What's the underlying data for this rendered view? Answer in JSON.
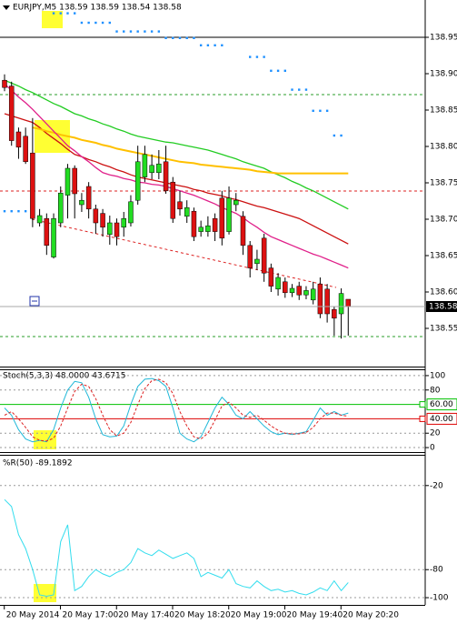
{
  "chart_data": [
    {
      "type": "candlestick",
      "title": "EURJPY,M5  138.59 138.59 138.54 138.58",
      "categories": [
        null,
        "20 May 2014",
        null,
        null,
        null,
        null,
        null,
        null,
        null,
        "20 May 17:00",
        null,
        null,
        null,
        null,
        null,
        null,
        null,
        "20 May 17:40",
        null,
        null,
        null,
        null,
        null,
        null,
        null,
        "20 May 18:20",
        null,
        null,
        null,
        null,
        null,
        null,
        null,
        "20 May 19:00",
        null,
        null,
        null,
        null,
        null,
        null,
        null,
        "20 May 19:40",
        null,
        null,
        null,
        null,
        null,
        null,
        null,
        "20 May 20:20"
      ],
      "open": [
        138.891,
        138.883,
        138.82,
        138.814,
        138.791,
        138.695,
        138.701,
        138.648,
        138.695,
        138.733,
        138.77,
        138.72,
        138.745,
        138.714,
        138.708,
        138.679,
        138.695,
        138.689,
        138.695,
        138.726,
        138.758,
        138.764,
        138.764,
        138.779,
        138.751,
        138.724,
        138.704,
        138.711,
        138.683,
        138.683,
        138.701,
        138.729,
        138.683,
        138.72,
        138.704,
        138.664,
        138.639,
        138.674,
        138.633,
        138.604,
        138.614,
        138.599,
        138.608,
        138.596,
        138.589,
        138.611,
        138.604,
        138.576,
        138.57,
        138.59
      ],
      "high": [
        138.899,
        138.889,
        138.826,
        138.826,
        138.839,
        138.714,
        138.708,
        138.708,
        138.745,
        138.776,
        138.774,
        138.736,
        138.751,
        138.72,
        138.714,
        138.705,
        138.701,
        138.71,
        138.733,
        138.801,
        138.801,
        138.789,
        138.795,
        138.801,
        138.758,
        138.739,
        138.726,
        138.716,
        138.698,
        138.704,
        138.708,
        138.739,
        138.745,
        138.736,
        138.711,
        138.67,
        138.658,
        138.68,
        138.639,
        138.626,
        138.62,
        138.611,
        138.614,
        138.608,
        138.614,
        138.62,
        138.611,
        138.58,
        138.605,
        138.59
      ],
      "low": [
        138.876,
        138.801,
        138.783,
        138.776,
        138.689,
        138.69,
        138.651,
        138.646,
        138.689,
        138.701,
        138.701,
        138.71,
        138.701,
        138.68,
        138.676,
        138.665,
        138.664,
        138.676,
        138.69,
        138.72,
        138.751,
        138.755,
        138.755,
        138.735,
        138.695,
        138.705,
        138.695,
        138.67,
        138.676,
        138.676,
        138.67,
        138.664,
        138.679,
        138.711,
        138.651,
        138.62,
        138.63,
        138.614,
        138.6,
        138.595,
        138.592,
        138.593,
        138.589,
        138.59,
        138.583,
        138.564,
        138.558,
        138.54,
        138.536,
        138.54
      ],
      "close": [
        138.881,
        138.808,
        138.799,
        138.779,
        138.701,
        138.705,
        138.664,
        138.701,
        138.736,
        138.77,
        138.735,
        138.726,
        138.714,
        138.695,
        138.689,
        138.695,
        138.676,
        138.701,
        138.724,
        138.779,
        138.789,
        138.774,
        138.776,
        138.739,
        138.701,
        138.714,
        138.716,
        138.676,
        138.689,
        138.691,
        138.683,
        138.674,
        138.729,
        138.726,
        138.664,
        138.633,
        138.645,
        138.626,
        138.608,
        138.62,
        138.599,
        138.605,
        138.596,
        138.602,
        138.604,
        138.57,
        138.57,
        138.564,
        138.598,
        138.58
      ],
      "up_color": "#22dd22",
      "down_color": "#dd1111",
      "lines": [
        {
          "color": "#22cc22",
          "values": [
            138.891,
            138.887,
            138.883,
            138.878,
            138.874,
            138.869,
            138.864,
            138.859,
            138.855,
            138.85,
            138.845,
            138.842,
            138.838,
            138.835,
            138.831,
            138.828,
            138.824,
            138.821,
            138.817,
            138.814,
            138.812,
            138.81,
            138.808,
            138.806,
            138.805,
            138.803,
            138.801,
            138.799,
            138.797,
            138.795,
            138.792,
            138.789,
            138.786,
            138.783,
            138.779,
            138.776,
            138.773,
            138.77,
            138.765,
            138.761,
            138.757,
            138.752,
            138.748,
            138.743,
            138.739,
            138.734,
            138.729,
            138.724,
            138.719,
            138.714
          ]
        },
        {
          "color": "#cc1111",
          "values": [
            138.845,
            138.842,
            138.839,
            138.836,
            138.833,
            138.826,
            138.818,
            138.811,
            138.804,
            138.796,
            138.789,
            138.786,
            138.782,
            138.779,
            138.775,
            138.772,
            138.768,
            138.765,
            138.761,
            138.758,
            138.756,
            138.754,
            138.752,
            138.75,
            138.748,
            138.746,
            138.744,
            138.741,
            138.739,
            138.736,
            138.734,
            138.732,
            138.729,
            138.727,
            138.724,
            138.721,
            138.718,
            138.716,
            138.713,
            138.71,
            138.707,
            138.704,
            138.701,
            138.696,
            138.691,
            138.686,
            138.681,
            138.676,
            138.671,
            138.666
          ]
        },
        {
          "color": "#ffc000",
          "values": [
            null,
            null,
            null,
            null,
            138.826,
            138.824,
            138.821,
            138.819,
            138.816,
            138.814,
            138.812,
            138.809,
            138.807,
            138.805,
            138.802,
            138.8,
            138.797,
            138.795,
            138.793,
            138.791,
            138.789,
            138.787,
            138.785,
            138.783,
            138.781,
            138.779,
            138.778,
            138.777,
            138.775,
            138.774,
            138.773,
            138.772,
            138.771,
            138.77,
            138.769,
            138.768,
            138.766,
            138.765,
            138.764,
            138.763,
            138.763,
            138.763,
            138.763,
            138.763,
            138.763,
            138.763,
            138.763,
            138.763,
            138.763,
            138.763
          ]
        },
        {
          "color": "#e0208a",
          "values": [
            138.886,
            138.877,
            138.868,
            138.86,
            138.851,
            138.841,
            138.831,
            138.821,
            138.811,
            138.801,
            138.794,
            138.786,
            138.779,
            138.771,
            138.764,
            138.761,
            138.759,
            138.756,
            138.754,
            138.751,
            138.75,
            138.748,
            138.747,
            138.745,
            138.742,
            138.739,
            138.736,
            138.733,
            138.729,
            138.725,
            138.721,
            138.716,
            138.712,
            138.708,
            138.702,
            138.695,
            138.689,
            138.682,
            138.676,
            138.672,
            138.668,
            138.664,
            138.66,
            138.656,
            138.652,
            138.649,
            138.645,
            138.641,
            138.637,
            138.633
          ]
        }
      ],
      "dots": {
        "color": "#1e90ff",
        "values": [
          138.711,
          138.711,
          138.711,
          138.711,
          null,
          null,
          null,
          138.983,
          138.983,
          138.983,
          138.983,
          138.97,
          138.97,
          138.97,
          138.97,
          138.97,
          138.958,
          138.958,
          138.958,
          138.958,
          138.958,
          138.958,
          138.958,
          138.949,
          138.949,
          138.949,
          138.949,
          138.949,
          138.939,
          138.939,
          138.939,
          138.939,
          null,
          null,
          null,
          138.923,
          138.923,
          138.923,
          138.904,
          138.904,
          138.904,
          138.878,
          138.878,
          138.878,
          138.849,
          138.849,
          138.849,
          138.815,
          138.815,
          null
        ]
      },
      "ylim": [
        138.4975,
        139.00125
      ],
      "yticks": [
        138.55,
        {
          "value": 138.6,
          "label": "138.60"
        },
        138.65,
        {
          "value": 138.7,
          "label": "138.70"
        },
        138.75,
        {
          "value": 138.8,
          "label": "138.80"
        },
        138.85,
        {
          "value": 138.9,
          "label": "138.90"
        },
        138.95
      ],
      "last_price": 138.58
    },
    {
      "type": "line",
      "title": "Stoch(5,3,3) 48.0000 43.6715",
      "series": [
        {
          "color": "#20b8d8",
          "dash": false,
          "values": [
            55,
            45,
            25,
            12,
            8,
            10,
            8,
            25,
            55,
            80,
            92,
            90,
            70,
            40,
            18,
            15,
            16,
            30,
            60,
            85,
            95,
            96,
            93,
            85,
            55,
            20,
            12,
            8,
            15,
            35,
            55,
            70,
            60,
            45,
            40,
            50,
            40,
            30,
            22,
            18,
            20,
            18,
            20,
            22,
            38,
            55,
            45,
            50,
            45,
            48
          ]
        },
        {
          "color": "#dd2222",
          "dash": true,
          "values": [
            45,
            50,
            40,
            28,
            15,
            10,
            9,
            13,
            30,
            55,
            78,
            88,
            85,
            68,
            45,
            25,
            16,
            20,
            35,
            60,
            82,
            93,
            95,
            90,
            75,
            50,
            30,
            15,
            12,
            20,
            38,
            58,
            63,
            55,
            45,
            42,
            45,
            38,
            30,
            24,
            20,
            19,
            19,
            21,
            28,
            40,
            48,
            48,
            45,
            43.6715
          ]
        }
      ],
      "ylim": [
        -6.25,
        107.5
      ],
      "yticks": [
        0,
        20,
        80,
        100
      ],
      "grid": true,
      "levels": [
        {
          "value": 60,
          "label": "60.00",
          "color": "#00c000"
        },
        {
          "value": 40,
          "label": "40.00",
          "color": "#dd0000"
        }
      ]
    },
    {
      "type": "line",
      "title": "%R(50) -89.1892",
      "series": [
        {
          "color": "#33ddee",
          "dash": false,
          "values": [
            -30,
            -35,
            -55,
            -65,
            -80,
            -98,
            -99,
            -98,
            -60,
            -48,
            -95,
            -92,
            -85,
            -80,
            -83,
            -85,
            -82,
            -80,
            -75,
            -65,
            -68,
            -70,
            -66,
            -69,
            -72,
            -70,
            -68,
            -72,
            -85,
            -82,
            -84,
            -86,
            -80,
            -90,
            -92,
            -93,
            -88,
            -92,
            -95,
            -94,
            -96,
            -95,
            -97,
            -98,
            -96,
            -93,
            -95,
            -88,
            -95,
            -89.1892
          ]
        }
      ],
      "ylim": [
        -105.16,
        1.29
      ],
      "yticks": [
        -100,
        -80,
        -20
      ],
      "grid": true
    }
  ]
}
